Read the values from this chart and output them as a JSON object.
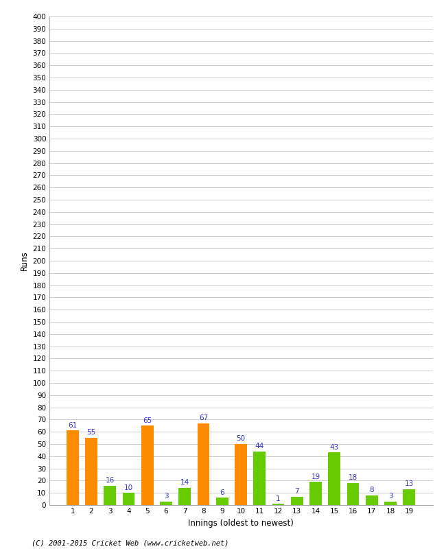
{
  "xlabel": "Innings (oldest to newest)",
  "ylabel": "Runs",
  "ylim": [
    0,
    400
  ],
  "yticks": [
    0,
    10,
    20,
    30,
    40,
    50,
    60,
    70,
    80,
    90,
    100,
    110,
    120,
    130,
    140,
    150,
    160,
    170,
    180,
    190,
    200,
    210,
    220,
    230,
    240,
    250,
    260,
    270,
    280,
    290,
    300,
    310,
    320,
    330,
    340,
    350,
    360,
    370,
    380,
    390,
    400
  ],
  "innings": [
    1,
    2,
    3,
    4,
    5,
    6,
    7,
    8,
    9,
    10,
    11,
    12,
    13,
    14,
    15,
    16,
    17,
    18,
    19
  ],
  "values": [
    61,
    55,
    16,
    10,
    65,
    3,
    14,
    67,
    6,
    50,
    44,
    1,
    7,
    19,
    43,
    18,
    8,
    3,
    13
  ],
  "colors": [
    "#ff8c00",
    "#ff8c00",
    "#66cc00",
    "#66cc00",
    "#ff8c00",
    "#66cc00",
    "#66cc00",
    "#ff8c00",
    "#66cc00",
    "#ff8c00",
    "#66cc00",
    "#66cc00",
    "#66cc00",
    "#66cc00",
    "#66cc00",
    "#66cc00",
    "#66cc00",
    "#66cc00",
    "#66cc00"
  ],
  "label_color": "#3333cc",
  "background_color": "#ffffff",
  "grid_color": "#cccccc",
  "copyright": "(C) 2001-2015 Cricket Web (www.cricketweb.net)"
}
